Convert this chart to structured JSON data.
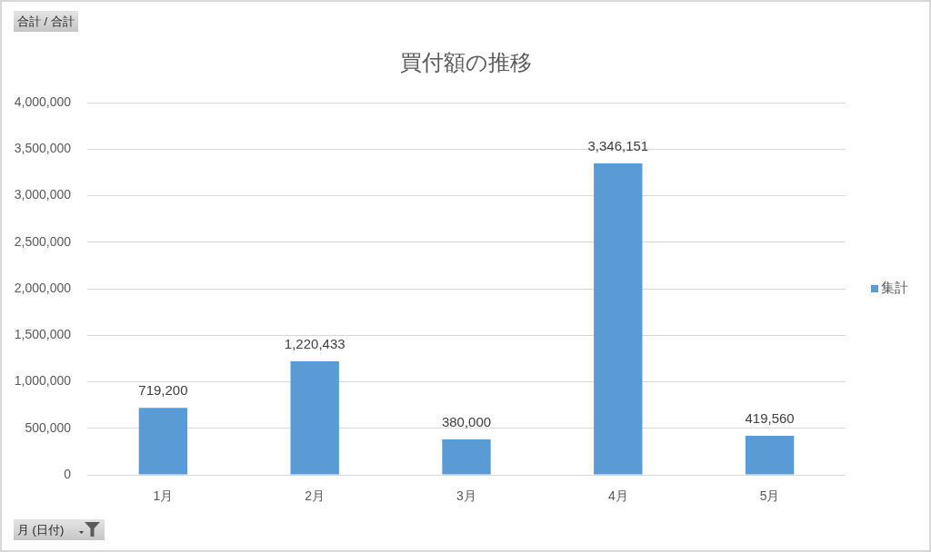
{
  "chart_data": {
    "type": "bar",
    "title": "買付額の推移",
    "categories": [
      "1月",
      "2月",
      "3月",
      "4月",
      "5月"
    ],
    "series": [
      {
        "name": "集計",
        "color": "#5b9bd5",
        "values": [
          719200,
          1220433,
          380000,
          3346151,
          419560
        ],
        "value_labels": [
          "719,200",
          "1,220,433",
          "380,000",
          "3,346,151",
          "419,560"
        ]
      }
    ],
    "ylim": [
      0,
      4000000
    ],
    "yticks": [
      0,
      {
        "value": 500000,
        "label": "500,000"
      },
      {
        "value": 1000000,
        "label": "1,000,000"
      },
      {
        "value": 1500000,
        "label": "1,500,000"
      },
      {
        "value": 2000000,
        "label": "2,000,000"
      },
      {
        "value": 2500000,
        "label": "2,500,000"
      },
      {
        "value": 3000000,
        "label": "3,000,000"
      },
      {
        "value": 3500000,
        "label": "3,500,000"
      },
      {
        "value": 4000000,
        "label": "4,000,000"
      }
    ],
    "grid": "y",
    "legend": "right",
    "annotations": [
      "合計 / 合計",
      "月 (日付)"
    ]
  }
}
